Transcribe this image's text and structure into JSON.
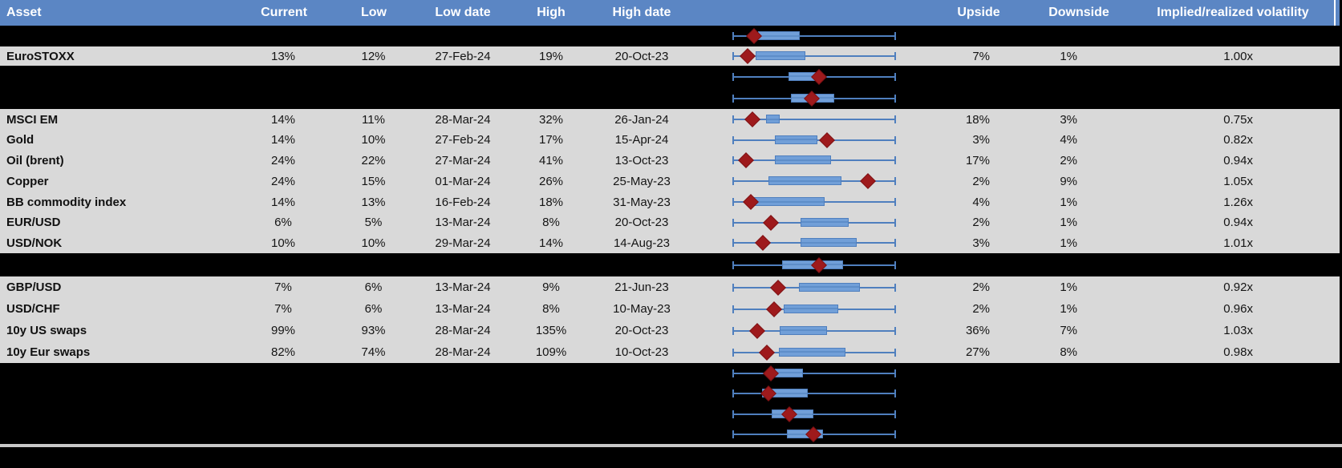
{
  "colors": {
    "header_bg": "#5b86c4",
    "header_text": "#ffffff",
    "row_bg": "#d9d9d9",
    "page_bg": "#000000",
    "box_fill": "#719fd8",
    "box_border": "#4f7fbe",
    "whisker": "#4f7fbe",
    "marker": "#9e1a1c",
    "divider": "#c8c8c8"
  },
  "chart_data": {
    "type": "table",
    "title": "",
    "description": "Asset volatility table: each row shows current implied volatility vs its low/high range, with an embedded min-max whisker plot (blue box = vol range, red diamond = current level), plus upside/downside and implied/realized volatility ratio.",
    "columns": [
      "Asset",
      "Current",
      "Low",
      "Low date",
      "High",
      "High date",
      "Upside",
      "Downside",
      "Implied/realized volatility"
    ],
    "boxplot_note": "box.lo, box.hi and box.m (red diamond marker) are percentages of the whisker span from left cap (0) to right cap (100)",
    "rows": [
      {
        "kind": "spacer",
        "box": {
          "lo": 15.7,
          "hi": 41.2,
          "m": 13.2
        }
      },
      {
        "kind": "data",
        "asset": "EuroSTOXX",
        "current": "13%",
        "low": "12%",
        "low_date": "27-Feb-24",
        "high": "19%",
        "high_date": "20-Oct-23",
        "upside": "7%",
        "downside": "1%",
        "implied_realized": "1.00x",
        "box": {
          "lo": 14.2,
          "hi": 44.6,
          "m": 9.3
        }
      },
      {
        "kind": "spacer",
        "box": {
          "lo": 34.3,
          "hi": 53.9,
          "m": 52.9
        }
      },
      {
        "kind": "spacer",
        "box": {
          "lo": 35.8,
          "hi": 62.3,
          "m": 48.5
        }
      },
      {
        "kind": "data",
        "asset": "MSCI EM",
        "current": "14%",
        "low": "11%",
        "low_date": "28-Mar-24",
        "high": "32%",
        "high_date": "26-Jan-24",
        "upside": "18%",
        "downside": "3%",
        "implied_realized": "0.75x",
        "box": {
          "lo": 20.6,
          "hi": 28.9,
          "m": 12.3
        }
      },
      {
        "kind": "data",
        "asset": "Gold",
        "current": "14%",
        "low": "10%",
        "low_date": "27-Feb-24",
        "high": "17%",
        "high_date": "15-Apr-24",
        "upside": "3%",
        "downside": "4%",
        "implied_realized": "0.82x",
        "box": {
          "lo": 26.0,
          "hi": 52.0,
          "m": 57.8
        }
      },
      {
        "kind": "data",
        "asset": "Oil (brent)",
        "current": "24%",
        "low": "22%",
        "low_date": "27-Mar-24",
        "high": "41%",
        "high_date": "13-Oct-23",
        "upside": "17%",
        "downside": "2%",
        "implied_realized": "0.94x",
        "box": {
          "lo": 26.0,
          "hi": 60.3,
          "m": 8.3
        }
      },
      {
        "kind": "data",
        "asset": "Copper",
        "current": "24%",
        "low": "15%",
        "low_date": "01-Mar-24",
        "high": "26%",
        "high_date": "25-May-23",
        "upside": "2%",
        "downside": "9%",
        "implied_realized": "1.05x",
        "box": {
          "lo": 22.1,
          "hi": 66.7,
          "m": 82.8
        }
      },
      {
        "kind": "data",
        "asset": "BB commodity index",
        "current": "14%",
        "low": "13%",
        "low_date": "16-Feb-24",
        "high": "18%",
        "high_date": "31-May-23",
        "upside": "4%",
        "downside": "1%",
        "implied_realized": "1.26x",
        "box": {
          "lo": 13.2,
          "hi": 56.4,
          "m": 11.3
        }
      },
      {
        "kind": "data",
        "asset": "EUR/USD",
        "current": "6%",
        "low": "5%",
        "low_date": "13-Mar-24",
        "high": "8%",
        "high_date": "20-Oct-23",
        "upside": "2%",
        "downside": "1%",
        "implied_realized": "0.94x",
        "box": {
          "lo": 41.7,
          "hi": 71.1,
          "m": 23.5
        }
      },
      {
        "kind": "data",
        "asset": "USD/NOK",
        "current": "10%",
        "low": "10%",
        "low_date": "29-Mar-24",
        "high": "14%",
        "high_date": "14-Aug-23",
        "upside": "3%",
        "downside": "1%",
        "implied_realized": "1.01x",
        "box": {
          "lo": 41.7,
          "hi": 76.0,
          "m": 18.6
        }
      },
      {
        "kind": "spacer",
        "box": {
          "lo": 30.4,
          "hi": 67.6,
          "m": 52.9
        }
      },
      {
        "kind": "data",
        "asset": "GBP/USD",
        "current": "7%",
        "low": "6%",
        "low_date": "13-Mar-24",
        "high": "9%",
        "high_date": "21-Jun-23",
        "upside": "2%",
        "downside": "1%",
        "implied_realized": "0.92x",
        "box": {
          "lo": 40.7,
          "hi": 77.9,
          "m": 27.9
        }
      },
      {
        "kind": "data",
        "asset": "USD/CHF",
        "current": "7%",
        "low": "6%",
        "low_date": "13-Mar-24",
        "high": "8%",
        "high_date": "10-May-23",
        "upside": "2%",
        "downside": "1%",
        "implied_realized": "0.96x",
        "box": {
          "lo": 31.4,
          "hi": 64.7,
          "m": 25.5
        }
      },
      {
        "kind": "data",
        "asset": "10y US swaps",
        "current": "99%",
        "low": "93%",
        "low_date": "28-Mar-24",
        "high": "135%",
        "high_date": "20-Oct-23",
        "upside": "36%",
        "downside": "7%",
        "implied_realized": "1.03x",
        "box": {
          "lo": 28.9,
          "hi": 57.8,
          "m": 15.2
        }
      },
      {
        "kind": "data",
        "asset": "10y Eur swaps",
        "current": "82%",
        "low": "74%",
        "low_date": "28-Mar-24",
        "high": "109%",
        "high_date": "10-Oct-23",
        "upside": "27%",
        "downside": "8%",
        "implied_realized": "0.98x",
        "box": {
          "lo": 28.4,
          "hi": 69.1,
          "m": 21.1
        }
      },
      {
        "kind": "spacer",
        "box": {
          "lo": 26.0,
          "hi": 43.1,
          "m": 23.5
        }
      },
      {
        "kind": "spacer",
        "box": {
          "lo": 18.1,
          "hi": 46.1,
          "m": 22.1
        }
      },
      {
        "kind": "spacer",
        "box": {
          "lo": 24.0,
          "hi": 49.5,
          "m": 34.8
        }
      },
      {
        "kind": "spacer",
        "box": {
          "lo": 33.3,
          "hi": 55.4,
          "m": 49.5
        }
      }
    ]
  }
}
